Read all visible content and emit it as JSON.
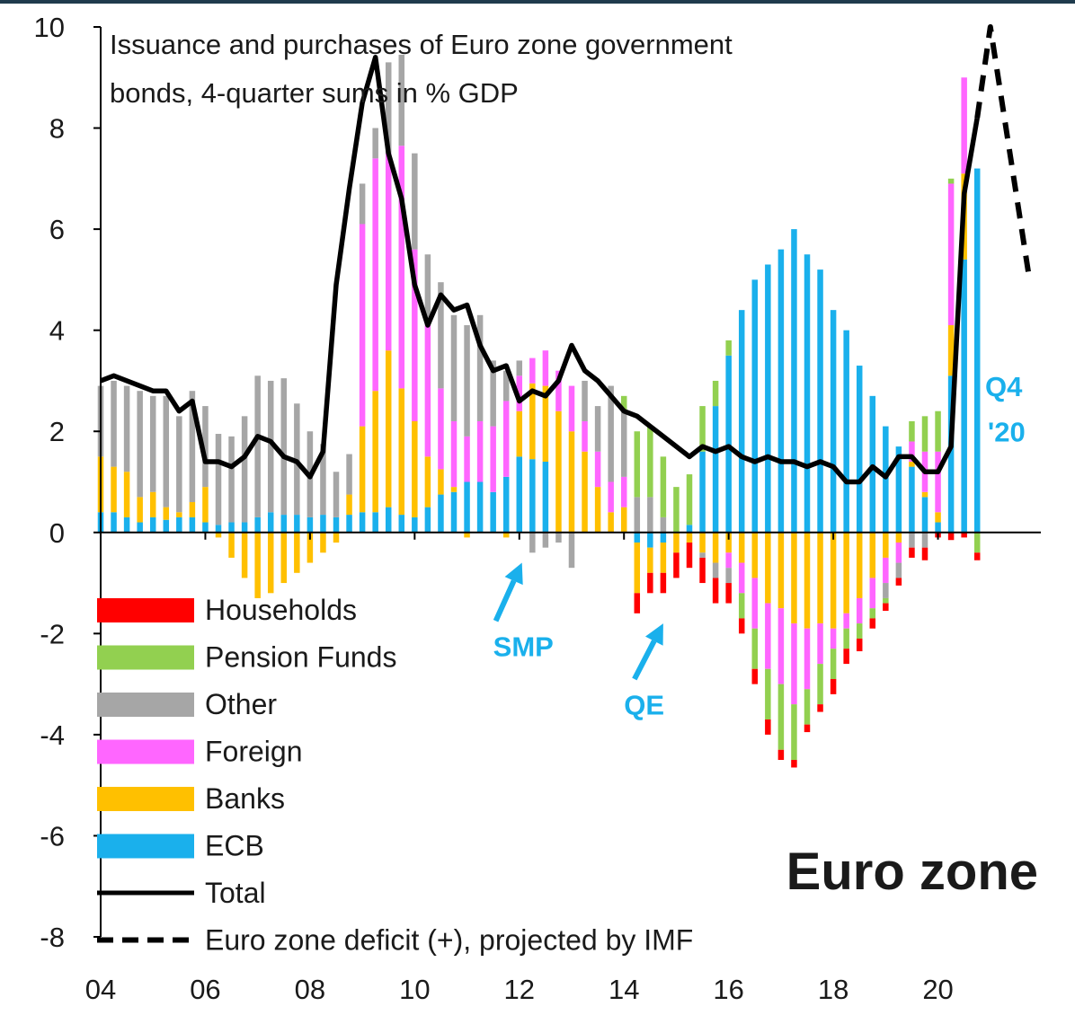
{
  "chart_data": {
    "type": "bar",
    "title": "Issuance and purchases of Euro zone government bonds, 4-quarter sums in % GDP",
    "title_lines": [
      "Issuance and purchases of Euro zone government",
      "bonds, 4-quarter sums in % GDP"
    ],
    "region_label": "Euro zone",
    "xlabel": "",
    "ylabel": "",
    "ylim": [
      -8,
      10
    ],
    "yticks": [
      10,
      8,
      6,
      4,
      2,
      0,
      -2,
      -4,
      -6,
      -8
    ],
    "xlim": [
      2004,
      2022
    ],
    "x_tick_values": [
      2004,
      2006,
      2008,
      2010,
      2012,
      2014,
      2016,
      2018,
      2020
    ],
    "x_tick_labels": [
      "04",
      "06",
      "08",
      "10",
      "12",
      "14",
      "16",
      "18",
      "20"
    ],
    "stack_order": [
      "ECB",
      "Banks",
      "Foreign",
      "Other",
      "Pension Funds",
      "Households"
    ],
    "series_colors": {
      "Households": "#ff0000",
      "Pension Funds": "#92d050",
      "Other": "#a6a6a6",
      "Foreign": "#ff66ff",
      "Banks": "#ffc000",
      "ECB": "#1ab0ec",
      "Total": "#000000",
      "Deficit": "#000000"
    },
    "x": [
      2004.0,
      2004.25,
      2004.5,
      2004.75,
      2005.0,
      2005.25,
      2005.5,
      2005.75,
      2006.0,
      2006.25,
      2006.5,
      2006.75,
      2007.0,
      2007.25,
      2007.5,
      2007.75,
      2008.0,
      2008.25,
      2008.5,
      2008.75,
      2009.0,
      2009.25,
      2009.5,
      2009.75,
      2010.0,
      2010.25,
      2010.5,
      2010.75,
      2011.0,
      2011.25,
      2011.5,
      2011.75,
      2012.0,
      2012.25,
      2012.5,
      2012.75,
      2013.0,
      2013.25,
      2013.5,
      2013.75,
      2014.0,
      2014.25,
      2014.5,
      2014.75,
      2015.0,
      2015.25,
      2015.5,
      2015.75,
      2016.0,
      2016.25,
      2016.5,
      2016.75,
      2017.0,
      2017.25,
      2017.5,
      2017.75,
      2018.0,
      2018.25,
      2018.5,
      2018.75,
      2019.0,
      2019.25,
      2019.5,
      2019.75,
      2020.0,
      2020.25,
      2020.5,
      2020.75
    ],
    "series": [
      {
        "name": "ECB",
        "values": [
          0.4,
          0.4,
          0.3,
          0.2,
          0.3,
          0.25,
          0.3,
          0.3,
          0.2,
          0.15,
          0.2,
          0.2,
          0.3,
          0.4,
          0.35,
          0.35,
          0.3,
          0.35,
          0.3,
          0.35,
          0.4,
          0.4,
          0.5,
          0.35,
          0.3,
          0.5,
          0.75,
          0.8,
          1.0,
          1.0,
          0.8,
          1.1,
          1.5,
          1.45,
          1.4,
          0,
          0,
          0,
          0,
          0,
          0,
          -0.2,
          -0.3,
          -0.2,
          0,
          0.15,
          1.6,
          2.5,
          3.5,
          4.4,
          5.0,
          5.3,
          5.6,
          6.0,
          5.5,
          5.2,
          4.4,
          4.0,
          3.3,
          2.7,
          2.1,
          1.7,
          1.3,
          0.7,
          0.2,
          3.1,
          5.4,
          7.2
        ]
      },
      {
        "name": "Banks",
        "values": [
          1.1,
          0.9,
          0.9,
          0.5,
          0.5,
          0.25,
          0.1,
          0.3,
          0.7,
          -0.1,
          -0.5,
          -0.9,
          -1.3,
          -1.2,
          -1.0,
          -0.8,
          -0.6,
          -0.4,
          -0.2,
          0.4,
          1.7,
          2.4,
          3.1,
          2.5,
          1.9,
          1.0,
          0.5,
          0.1,
          -0.1,
          0,
          0,
          -0.1,
          0.9,
          1.5,
          1.5,
          2.4,
          2.0,
          1.6,
          0.9,
          0.4,
          0.5,
          -1.0,
          -0.5,
          -0.6,
          -0.4,
          -0.2,
          -0.4,
          -0.6,
          -0.4,
          -0.6,
          -0.9,
          -1.4,
          -1.5,
          -1.8,
          -1.9,
          -1.8,
          -1.9,
          -1.6,
          -1.3,
          -0.9,
          -0.5,
          -0.2,
          0.1,
          0.1,
          0.2,
          1.0,
          1.7,
          0
        ]
      },
      {
        "name": "Foreign",
        "values": [
          0,
          0,
          0,
          0,
          0,
          0,
          0,
          0,
          0,
          0,
          0,
          0,
          0,
          0,
          0,
          0,
          0,
          0,
          0,
          0,
          4.0,
          4.6,
          3.9,
          4.8,
          3.4,
          2.6,
          1.6,
          1.3,
          0.9,
          1.2,
          1.3,
          1.5,
          0.7,
          0.5,
          0.7,
          0.8,
          0.9,
          0.6,
          0.7,
          0.6,
          0.6,
          0,
          0,
          0,
          0,
          0,
          0,
          0,
          -0.3,
          -0.6,
          -1.0,
          -1.3,
          -1.5,
          -1.6,
          -1.2,
          -0.8,
          -0.4,
          -0.3,
          -0.5,
          -0.6,
          -0.5,
          -0.4,
          0.4,
          0.8,
          1.2,
          2.8,
          1.9,
          0
        ]
      },
      {
        "name": "Other",
        "values": [
          1.4,
          1.7,
          1.7,
          2.1,
          1.9,
          2.2,
          1.9,
          2.2,
          1.6,
          1.8,
          1.7,
          2.1,
          2.8,
          2.6,
          2.7,
          2.2,
          1.7,
          1.4,
          0.9,
          0.8,
          0.8,
          0.6,
          1.8,
          1.8,
          1.9,
          1.4,
          2.1,
          2.1,
          2.2,
          2.1,
          1.3,
          0.6,
          0.3,
          -0.4,
          -0.3,
          -0.2,
          -0.7,
          0.8,
          0.9,
          1.9,
          1.3,
          0.7,
          0.7,
          0.3,
          0,
          0,
          -0.1,
          -0.3,
          -0.3,
          0,
          0,
          0,
          0,
          0,
          0,
          0,
          0,
          0,
          0,
          0,
          -0.3,
          -0.3,
          -0.3,
          -0.3,
          0,
          0,
          0,
          0
        ]
      },
      {
        "name": "Pension Funds",
        "values": [
          0,
          0,
          0,
          0,
          0,
          0,
          0,
          0,
          0,
          0,
          0,
          0,
          0,
          0,
          0,
          0,
          0,
          0,
          0,
          0,
          0,
          0,
          0,
          0,
          0,
          0,
          0,
          0,
          0,
          0,
          0,
          0,
          0,
          0,
          0,
          0,
          0,
          0,
          0,
          0,
          0.3,
          1.3,
          1.4,
          1.2,
          0.9,
          1.0,
          0.9,
          0.5,
          0.3,
          -0.5,
          -0.8,
          -1.0,
          -1.3,
          -1.1,
          -0.7,
          -0.8,
          -0.6,
          -0.4,
          -0.3,
          -0.2,
          -0.1,
          0,
          0.4,
          0.7,
          0.8,
          0.1,
          0,
          -0.4
        ]
      },
      {
        "name": "Households",
        "values": [
          0,
          0,
          0,
          0,
          0,
          0,
          0,
          0,
          0,
          0,
          0,
          0,
          0,
          0,
          0,
          0,
          0,
          0,
          0,
          0,
          0,
          0,
          0,
          0,
          0,
          0,
          0,
          0,
          0,
          0,
          0,
          0,
          0,
          0,
          0,
          0,
          0,
          0,
          0,
          0,
          0,
          -0.4,
          -0.4,
          -0.4,
          -0.5,
          -0.5,
          -0.5,
          -0.5,
          -0.4,
          -0.3,
          -0.3,
          -0.3,
          -0.2,
          -0.15,
          -0.15,
          -0.15,
          -0.3,
          -0.3,
          -0.25,
          -0.2,
          -0.15,
          -0.15,
          -0.2,
          -0.25,
          -0.1,
          -0.15,
          -0.1,
          -0.15
        ]
      },
      {
        "name": "Total",
        "type": "line",
        "values": [
          3.0,
          3.1,
          3.0,
          2.9,
          2.8,
          2.8,
          2.4,
          2.6,
          1.4,
          1.4,
          1.3,
          1.5,
          1.9,
          1.8,
          1.5,
          1.4,
          1.1,
          1.6,
          4.9,
          6.8,
          8.5,
          9.4,
          7.5,
          6.6,
          4.9,
          4.1,
          4.7,
          4.4,
          4.5,
          3.7,
          3.2,
          3.3,
          2.6,
          2.8,
          2.7,
          3.0,
          3.7,
          3.2,
          3.0,
          2.7,
          2.4,
          2.3,
          2.1,
          1.9,
          1.7,
          1.5,
          1.7,
          1.6,
          1.7,
          1.5,
          1.4,
          1.5,
          1.4,
          1.4,
          1.3,
          1.4,
          1.3,
          1.0,
          1.0,
          1.3,
          1.1,
          1.5,
          1.5,
          1.2,
          1.2,
          1.7,
          6.7,
          8.2
        ]
      },
      {
        "name": "Euro zone deficit (+), projected by IMF",
        "type": "line",
        "style": "dashed",
        "x": [
          2020.75,
          2021.0,
          2021.75
        ],
        "values": [
          8.2,
          10.0,
          5.0
        ]
      }
    ],
    "legend": [
      {
        "label": "Households",
        "kind": "box",
        "color": "#ff0000"
      },
      {
        "label": "Pension Funds",
        "kind": "box",
        "color": "#92d050"
      },
      {
        "label": "Other",
        "kind": "box",
        "color": "#a6a6a6"
      },
      {
        "label": "Foreign",
        "kind": "box",
        "color": "#ff66ff"
      },
      {
        "label": "Banks",
        "kind": "box",
        "color": "#ffc000"
      },
      {
        "label": "ECB",
        "kind": "box",
        "color": "#1ab0ec"
      },
      {
        "label": "Total",
        "kind": "line",
        "color": "#000000"
      },
      {
        "label": "Euro zone deficit (+), projected by IMF",
        "kind": "dash",
        "color": "#000000"
      }
    ],
    "annotations": [
      {
        "text": "SMP",
        "color": "#1ab0ec",
        "x": 2011.5,
        "y": -2.45,
        "arrow_from": [
          2011.55,
          -1.75
        ],
        "arrow_to": [
          2012.05,
          -0.6
        ]
      },
      {
        "text": "QE",
        "color": "#1ab0ec",
        "x": 2014.0,
        "y": -3.6,
        "arrow_from": [
          2014.2,
          -2.9
        ],
        "arrow_to": [
          2014.75,
          -1.8
        ]
      },
      {
        "text": "Q4",
        "color": "#1ab0ec",
        "x": 2020.9,
        "y": 2.7
      },
      {
        "text": "'20",
        "color": "#1ab0ec",
        "x": 2020.95,
        "y": 1.8
      }
    ],
    "legend_position": "bottom-left"
  }
}
